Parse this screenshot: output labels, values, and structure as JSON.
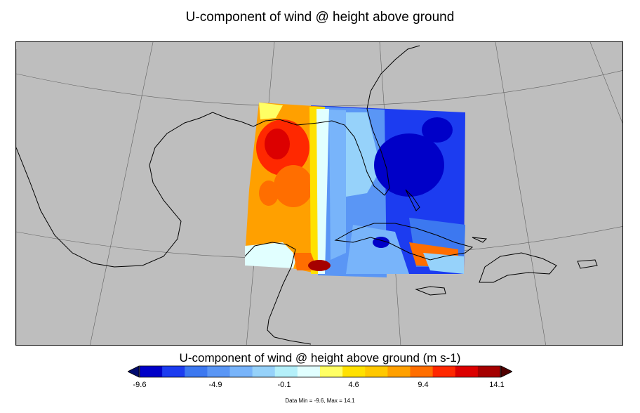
{
  "title": "U-component of wind @ height above ground",
  "colorbar": {
    "title": "U-component of wind @ height above ground (m s-1)",
    "ticks": [
      "-9.6",
      "-4.9",
      "-0.1",
      "4.6",
      "9.4",
      "14.1"
    ],
    "colors": [
      "#0000c8",
      "#1c3cf0",
      "#3c78f0",
      "#5a96f5",
      "#78b4fa",
      "#96d2fa",
      "#b4f0fa",
      "#e1ffff",
      "#ffff64",
      "#ffe100",
      "#ffc800",
      "#ffa000",
      "#ff6e00",
      "#ff2800",
      "#dc0000",
      "#a50000"
    ],
    "under_color": "#000a6e",
    "over_color": "#500000"
  },
  "stats": "Data Min = -9.6, Max = 14.1",
  "map_data": {
    "land_color": "#bebebe",
    "coastline_color": "#000000",
    "graticule_color": "#606060"
  }
}
